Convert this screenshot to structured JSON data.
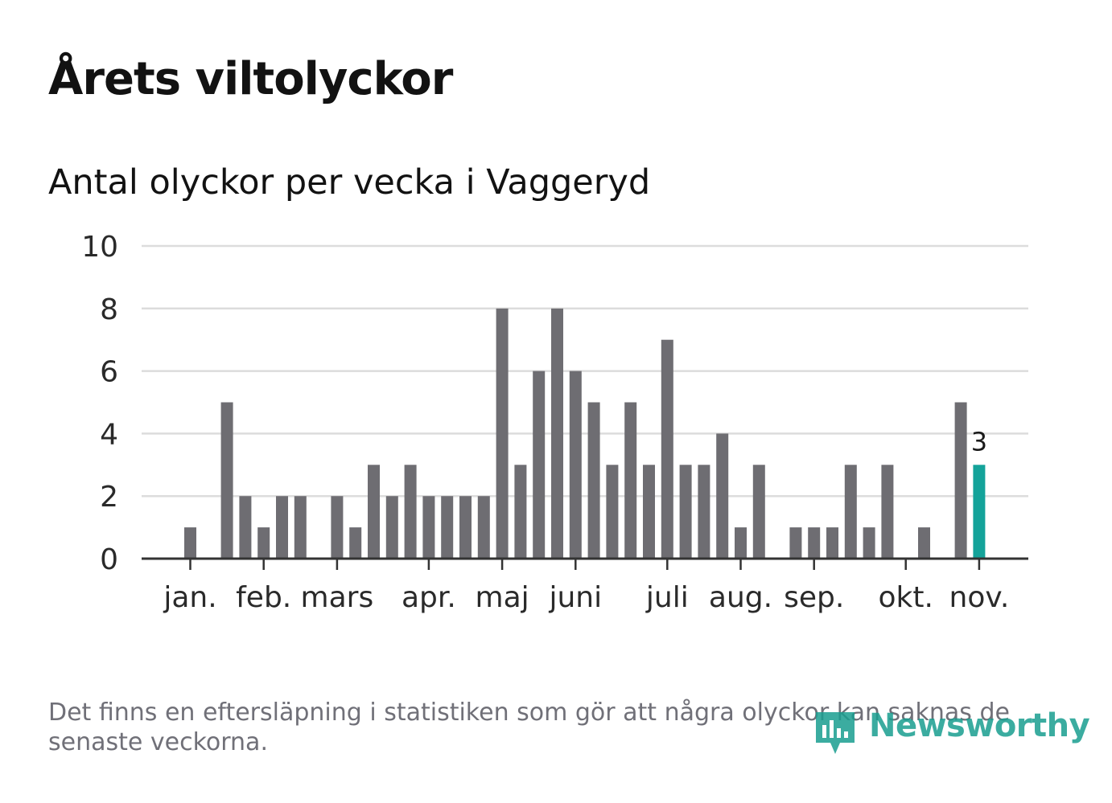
{
  "title": "Årets viltolyckor",
  "subtitle": "Antal olyckor per vecka i Vaggeryd",
  "footnote": "Det finns en eftersläpning i statistiken som gör att några olyckor kan saknas de senaste veckorna.",
  "brand": "Newsworthy",
  "colors": {
    "bar": "#6e6d72",
    "highlight": "#14a39a",
    "grid": "#dcdcdc",
    "axis": "#333333",
    "brand": "#1a9e90"
  },
  "chart_data": {
    "type": "bar",
    "title": "Antal olyckor per vecka i Vaggeryd",
    "xlabel": "",
    "ylabel": "",
    "ylim": [
      0,
      10
    ],
    "yticks": [
      0,
      2,
      4,
      6,
      8,
      10
    ],
    "weeks": [
      1,
      2,
      3,
      4,
      5,
      6,
      7,
      8,
      9,
      10,
      11,
      12,
      13,
      14,
      15,
      16,
      17,
      18,
      19,
      20,
      21,
      22,
      23,
      24,
      25,
      26,
      27,
      28,
      29,
      30,
      31,
      32,
      33,
      34,
      35,
      36,
      37,
      38,
      39,
      40,
      41,
      42,
      43,
      44
    ],
    "values": [
      1,
      0,
      5,
      2,
      1,
      2,
      2,
      0,
      2,
      1,
      3,
      2,
      3,
      2,
      2,
      2,
      2,
      8,
      3,
      6,
      8,
      6,
      5,
      3,
      5,
      3,
      7,
      3,
      3,
      4,
      1,
      3,
      0,
      1,
      1,
      1,
      3,
      1,
      3,
      0,
      1,
      0,
      5,
      3
    ],
    "highlight_index": 43,
    "highlight_label": "3",
    "month_ticks": [
      {
        "label": "jan.",
        "week": 1
      },
      {
        "label": "feb.",
        "week": 5
      },
      {
        "label": "mars",
        "week": 9
      },
      {
        "label": "apr.",
        "week": 14
      },
      {
        "label": "maj",
        "week": 18
      },
      {
        "label": "juni",
        "week": 22
      },
      {
        "label": "juli",
        "week": 27
      },
      {
        "label": "aug.",
        "week": 31
      },
      {
        "label": "sep.",
        "week": 35
      },
      {
        "label": "okt.",
        "week": 40
      },
      {
        "label": "nov.",
        "week": 44
      }
    ]
  }
}
